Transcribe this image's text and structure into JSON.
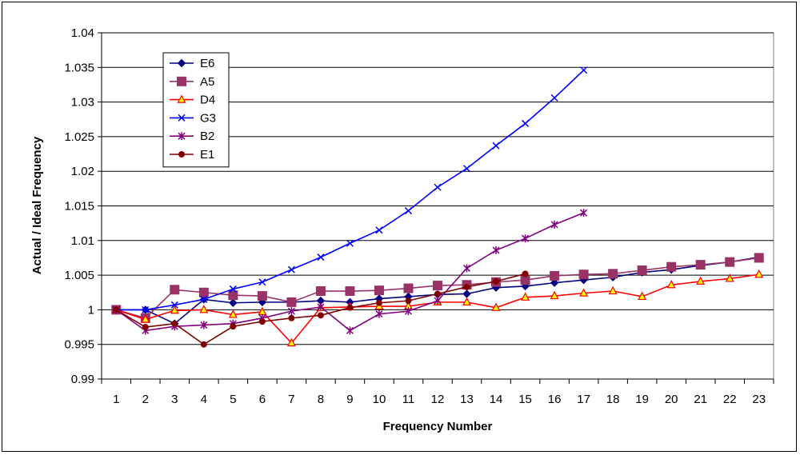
{
  "chart_data": {
    "type": "line",
    "title": "",
    "xlabel": "Frequency Number",
    "ylabel": "Actual / Ideal Frequency",
    "categories": [
      "1",
      "2",
      "3",
      "4",
      "5",
      "6",
      "7",
      "8",
      "9",
      "10",
      "11",
      "12",
      "13",
      "14",
      "15",
      "16",
      "17",
      "18",
      "19",
      "20",
      "21",
      "22",
      "23"
    ],
    "ylim": [
      0.99,
      1.04
    ],
    "yticks": [
      0.99,
      0.995,
      1,
      1.005,
      1.01,
      1.015,
      1.02,
      1.025,
      1.03,
      1.035,
      1.04
    ],
    "ytick_labels": [
      "0.99",
      "0.995",
      "1",
      "1.005",
      "1.01",
      "1.015",
      "1.02",
      "1.025",
      "1.03",
      "1.035",
      "1.04"
    ],
    "grid": "horizontal",
    "legend_position": "top-left",
    "series": [
      {
        "name": "E6",
        "color": "#000080",
        "marker": "diamond",
        "values": [
          1.0,
          1.0,
          0.998,
          1.0015,
          1.001,
          1.0011,
          1.0011,
          1.0013,
          1.0011,
          1.0016,
          1.0019,
          1.0022,
          1.0023,
          1.0032,
          1.0034,
          1.0039,
          1.0043,
          1.0047,
          1.0054,
          1.0058,
          1.0064,
          1.0069,
          1.0076
        ]
      },
      {
        "name": "A5",
        "color": "#993366",
        "marker": "square",
        "values": [
          1.0,
          0.9988,
          1.0029,
          1.0025,
          1.0021,
          1.002,
          1.0011,
          1.0027,
          1.0027,
          1.0028,
          1.0031,
          1.0035,
          1.0036,
          1.004,
          1.0043,
          1.0049,
          1.0051,
          1.0052,
          1.0057,
          1.0062,
          1.0065,
          1.0069,
          1.0075
        ]
      },
      {
        "name": "D4",
        "color": "#FF0000",
        "marker": "triangle",
        "values": [
          1.0,
          0.9986,
          0.9999,
          1.0,
          0.9993,
          0.9997,
          0.9952,
          1.0003,
          1.0004,
          1.0005,
          1.0005,
          1.0011,
          1.0011,
          1.0003,
          1.0018,
          1.002,
          1.0024,
          1.0027,
          1.0019,
          1.0036,
          1.0041,
          1.0045,
          1.0051
        ]
      },
      {
        "name": "G3",
        "color": "#0000FF",
        "marker": "x",
        "values": [
          1.0,
          1.0,
          1.0007,
          1.0015,
          1.003,
          1.004,
          1.0058,
          1.0076,
          1.0096,
          1.0115,
          1.0143,
          1.0177,
          1.0204,
          1.0237,
          1.0269,
          1.0306,
          1.0346,
          null,
          null,
          null,
          null,
          null,
          null
        ]
      },
      {
        "name": "B2",
        "color": "#800080",
        "marker": "star",
        "values": [
          1.0,
          0.997,
          0.9976,
          0.9978,
          0.998,
          0.9988,
          0.9998,
          1.0004,
          0.997,
          0.9994,
          0.9998,
          1.0013,
          1.006,
          1.0086,
          1.0103,
          1.0123,
          1.014,
          null,
          null,
          null,
          null,
          null,
          null
        ]
      },
      {
        "name": "E1",
        "color": "#800000",
        "marker": "circle",
        "values": [
          1.0,
          0.9975,
          0.998,
          0.995,
          0.9976,
          0.9983,
          0.9988,
          0.9992,
          1.0003,
          1.001,
          1.0013,
          1.0023,
          1.0033,
          1.0041,
          1.0052,
          null,
          null,
          null,
          null,
          null,
          null,
          null,
          null
        ]
      }
    ]
  }
}
